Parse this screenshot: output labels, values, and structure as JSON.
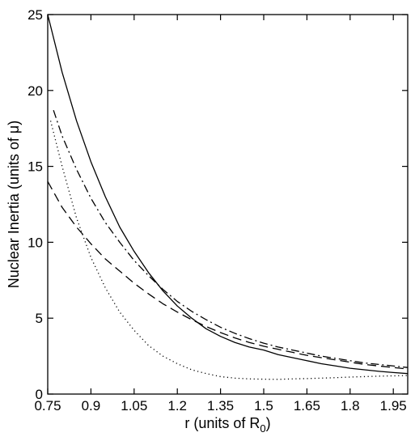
{
  "chart_data": {
    "type": "line",
    "title": "",
    "xlabel": "r (units of R",
    "xlabel_subscript": "0",
    "xlabel_suffix": ")",
    "ylabel": "Nuclear Inertia (units of μ)",
    "xlim": [
      0.75,
      2.0
    ],
    "ylim": [
      0,
      25
    ],
    "xticks": [
      0.75,
      0.9,
      1.05,
      1.2,
      1.35,
      1.5,
      1.65,
      1.8,
      1.95
    ],
    "xtick_labels": [
      "0.75",
      "0.9",
      "1.05",
      "1.2",
      "1.35",
      "1.5",
      "1.65",
      "1.8",
      "1.95"
    ],
    "yticks": [
      0,
      5,
      10,
      15,
      20,
      25
    ],
    "ytick_labels": [
      "0",
      "5",
      "10",
      "15",
      "20",
      "25"
    ],
    "grid": false,
    "legend": false,
    "series": [
      {
        "style": "solid",
        "color": "#000000",
        "x": [
          0.75,
          0.8,
          0.85,
          0.9,
          0.95,
          1.0,
          1.05,
          1.1,
          1.15,
          1.2,
          1.25,
          1.3,
          1.35,
          1.4,
          1.45,
          1.5,
          1.55,
          1.6,
          1.65,
          1.7,
          1.75,
          1.8,
          1.85,
          1.9,
          1.95,
          2.0
        ],
        "y": [
          25.0,
          21.2,
          18.0,
          15.3,
          13.0,
          11.0,
          9.4,
          8.0,
          6.8,
          5.8,
          5.0,
          4.3,
          3.8,
          3.4,
          3.1,
          2.9,
          2.6,
          2.4,
          2.2,
          2.0,
          1.85,
          1.7,
          1.6,
          1.5,
          1.42,
          1.35
        ]
      },
      {
        "style": "dashdot",
        "color": "#000000",
        "x": [
          0.77,
          0.8,
          0.85,
          0.9,
          0.95,
          1.0,
          1.05,
          1.1,
          1.15,
          1.2,
          1.25,
          1.3,
          1.35,
          1.4,
          1.45,
          1.5,
          1.55,
          1.6,
          1.65,
          1.7,
          1.75,
          1.8,
          1.85,
          1.9,
          1.95,
          2.0
        ],
        "y": [
          18.7,
          17.0,
          14.8,
          12.9,
          11.3,
          10.0,
          8.8,
          7.8,
          6.9,
          6.1,
          5.45,
          4.9,
          4.4,
          4.0,
          3.65,
          3.35,
          3.1,
          2.9,
          2.7,
          2.5,
          2.35,
          2.2,
          2.05,
          1.95,
          1.85,
          1.75
        ]
      },
      {
        "style": "dashed",
        "color": "#000000",
        "x": [
          0.75,
          0.8,
          0.85,
          0.9,
          0.95,
          1.0,
          1.05,
          1.1,
          1.15,
          1.2,
          1.25,
          1.3,
          1.35,
          1.4,
          1.45,
          1.5,
          1.55,
          1.6,
          1.65,
          1.7,
          1.75,
          1.8,
          1.85,
          1.9,
          1.95,
          2.0
        ],
        "y": [
          14.0,
          12.3,
          11.0,
          9.9,
          8.9,
          8.1,
          7.3,
          6.6,
          5.95,
          5.4,
          4.9,
          4.45,
          4.05,
          3.7,
          3.4,
          3.15,
          2.95,
          2.75,
          2.55,
          2.4,
          2.25,
          2.1,
          1.95,
          1.85,
          1.75,
          1.65
        ]
      },
      {
        "style": "dotted",
        "color": "#000000",
        "x": [
          0.76,
          0.8,
          0.85,
          0.9,
          0.95,
          1.0,
          1.05,
          1.1,
          1.15,
          1.2,
          1.25,
          1.3,
          1.35,
          1.4,
          1.45,
          1.5,
          1.55,
          1.6,
          1.65,
          1.7,
          1.75,
          1.8,
          1.85,
          1.9,
          1.95,
          2.0
        ],
        "y": [
          18.0,
          15.0,
          11.6,
          9.0,
          7.0,
          5.4,
          4.2,
          3.2,
          2.5,
          2.0,
          1.6,
          1.35,
          1.15,
          1.05,
          1.0,
          0.98,
          0.97,
          1.0,
          1.02,
          1.05,
          1.08,
          1.12,
          1.15,
          1.18,
          1.2,
          1.22
        ]
      }
    ]
  }
}
